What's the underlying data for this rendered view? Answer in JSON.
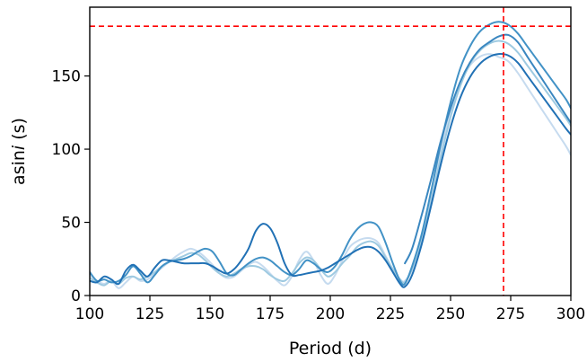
{
  "chart_data": {
    "type": "line",
    "xlabel": "Period (d)",
    "ylabel_prefix": "asin",
    "ylabel_italic": "i",
    "ylabel_suffix": " (s)",
    "xlim": [
      100,
      300
    ],
    "ylim": [
      0,
      197
    ],
    "xticks": [
      100,
      125,
      150,
      175,
      200,
      225,
      250,
      275,
      300
    ],
    "yticks": [
      0,
      50,
      100,
      150
    ],
    "grid": false,
    "reference_lines": {
      "x": 272,
      "y": 184,
      "color": "#ff0000",
      "style": "dashed"
    },
    "series": [
      {
        "color": "#c6dbef",
        "points": [
          [
            100,
            14
          ],
          [
            103,
            10
          ],
          [
            106,
            8
          ],
          [
            109,
            10
          ],
          [
            112,
            5
          ],
          [
            115,
            9
          ],
          [
            118,
            13
          ],
          [
            121,
            10
          ],
          [
            124,
            11
          ],
          [
            127,
            15
          ],
          [
            130,
            19
          ],
          [
            133,
            23
          ],
          [
            136,
            27
          ],
          [
            139,
            30
          ],
          [
            142,
            32
          ],
          [
            145,
            30
          ],
          [
            148,
            26
          ],
          [
            151,
            21
          ],
          [
            154,
            15
          ],
          [
            157,
            12
          ],
          [
            160,
            13
          ],
          [
            163,
            17
          ],
          [
            166,
            21
          ],
          [
            169,
            23
          ],
          [
            172,
            20
          ],
          [
            175,
            15
          ],
          [
            178,
            10
          ],
          [
            181,
            7
          ],
          [
            184,
            13
          ],
          [
            187,
            24
          ],
          [
            190,
            30
          ],
          [
            193,
            24
          ],
          [
            196,
            14
          ],
          [
            199,
            8
          ],
          [
            202,
            14
          ],
          [
            205,
            24
          ],
          [
            208,
            33
          ],
          [
            211,
            37
          ],
          [
            214,
            39
          ],
          [
            217,
            39
          ],
          [
            220,
            36
          ],
          [
            223,
            27
          ],
          [
            226,
            18
          ],
          [
            229,
            11
          ],
          [
            231,
            10
          ],
          [
            234,
            18
          ],
          [
            238,
            40
          ],
          [
            242,
            70
          ],
          [
            246,
            100
          ],
          [
            250,
            126
          ],
          [
            254,
            145
          ],
          [
            258,
            157
          ],
          [
            262,
            163
          ],
          [
            266,
            165
          ],
          [
            270,
            163
          ],
          [
            274,
            160
          ],
          [
            278,
            152
          ],
          [
            282,
            142
          ],
          [
            286,
            132
          ],
          [
            290,
            122
          ],
          [
            294,
            112
          ],
          [
            298,
            102
          ],
          [
            300,
            96
          ]
        ]
      },
      {
        "color": "#9ecae1",
        "points": [
          [
            100,
            12
          ],
          [
            103,
            9
          ],
          [
            106,
            7
          ],
          [
            109,
            10
          ],
          [
            112,
            8
          ],
          [
            115,
            12
          ],
          [
            118,
            13
          ],
          [
            121,
            11
          ],
          [
            124,
            13
          ],
          [
            127,
            16
          ],
          [
            130,
            20
          ],
          [
            133,
            23
          ],
          [
            136,
            25
          ],
          [
            139,
            27
          ],
          [
            142,
            29
          ],
          [
            145,
            28
          ],
          [
            148,
            24
          ],
          [
            151,
            19
          ],
          [
            154,
            15
          ],
          [
            157,
            13
          ],
          [
            160,
            15
          ],
          [
            163,
            18
          ],
          [
            166,
            20
          ],
          [
            169,
            20
          ],
          [
            172,
            18
          ],
          [
            175,
            14
          ],
          [
            178,
            11
          ],
          [
            181,
            10
          ],
          [
            184,
            15
          ],
          [
            187,
            22
          ],
          [
            190,
            26
          ],
          [
            193,
            24
          ],
          [
            196,
            18
          ],
          [
            199,
            13
          ],
          [
            202,
            16
          ],
          [
            205,
            22
          ],
          [
            208,
            27
          ],
          [
            211,
            33
          ],
          [
            214,
            36
          ],
          [
            217,
            37
          ],
          [
            220,
            34
          ],
          [
            223,
            26
          ],
          [
            226,
            18
          ],
          [
            229,
            11
          ],
          [
            231,
            9
          ],
          [
            234,
            18
          ],
          [
            238,
            38
          ],
          [
            242,
            65
          ],
          [
            246,
            95
          ],
          [
            250,
            122
          ],
          [
            254,
            143
          ],
          [
            258,
            158
          ],
          [
            262,
            167
          ],
          [
            266,
            172
          ],
          [
            270,
            174
          ],
          [
            274,
            172
          ],
          [
            278,
            166
          ],
          [
            282,
            157
          ],
          [
            286,
            148
          ],
          [
            290,
            139
          ],
          [
            294,
            130
          ],
          [
            298,
            121
          ],
          [
            300,
            116
          ]
        ]
      },
      {
        "color": "#4292c6",
        "points": [
          [
            100,
            16
          ],
          [
            103,
            10
          ],
          [
            106,
            11
          ],
          [
            109,
            9
          ],
          [
            112,
            10
          ],
          [
            115,
            14
          ],
          [
            118,
            20
          ],
          [
            121,
            15
          ],
          [
            124,
            9
          ],
          [
            127,
            14
          ],
          [
            130,
            20
          ],
          [
            133,
            23
          ],
          [
            136,
            24
          ],
          [
            139,
            25
          ],
          [
            142,
            27
          ],
          [
            145,
            30
          ],
          [
            148,
            32
          ],
          [
            151,
            30
          ],
          [
            154,
            23
          ],
          [
            157,
            15
          ],
          [
            160,
            14
          ],
          [
            163,
            18
          ],
          [
            166,
            22
          ],
          [
            169,
            25
          ],
          [
            172,
            26
          ],
          [
            175,
            24
          ],
          [
            178,
            20
          ],
          [
            181,
            16
          ],
          [
            184,
            14
          ],
          [
            187,
            18
          ],
          [
            190,
            24
          ],
          [
            193,
            22
          ],
          [
            196,
            18
          ],
          [
            199,
            16
          ],
          [
            202,
            20
          ],
          [
            205,
            28
          ],
          [
            208,
            38
          ],
          [
            211,
            45
          ],
          [
            214,
            49
          ],
          [
            217,
            50
          ],
          [
            220,
            47
          ],
          [
            223,
            36
          ],
          [
            226,
            22
          ],
          [
            229,
            10
          ],
          [
            231,
            8
          ],
          [
            234,
            20
          ],
          [
            238,
            42
          ],
          [
            242,
            72
          ],
          [
            246,
            104
          ],
          [
            250,
            132
          ],
          [
            254,
            155
          ],
          [
            258,
            170
          ],
          [
            262,
            180
          ],
          [
            266,
            185
          ],
          [
            270,
            187
          ],
          [
            274,
            185
          ],
          [
            278,
            179
          ],
          [
            282,
            170
          ],
          [
            286,
            161
          ],
          [
            290,
            152
          ],
          [
            294,
            143
          ],
          [
            298,
            134
          ],
          [
            300,
            128
          ]
        ]
      },
      {
        "color": "#2171b5",
        "points": [
          [
            100,
            10
          ],
          [
            103,
            9
          ],
          [
            106,
            13
          ],
          [
            109,
            11
          ],
          [
            112,
            8
          ],
          [
            115,
            17
          ],
          [
            118,
            21
          ],
          [
            121,
            17
          ],
          [
            124,
            13
          ],
          [
            127,
            19
          ],
          [
            130,
            24
          ],
          [
            133,
            24
          ],
          [
            136,
            23
          ],
          [
            139,
            22
          ],
          [
            142,
            22
          ],
          [
            145,
            22
          ],
          [
            148,
            22
          ],
          [
            151,
            20
          ],
          [
            154,
            17
          ],
          [
            157,
            15
          ],
          [
            160,
            18
          ],
          [
            163,
            24
          ],
          [
            166,
            32
          ],
          [
            169,
            44
          ],
          [
            172,
            49
          ],
          [
            175,
            46
          ],
          [
            178,
            36
          ],
          [
            181,
            22
          ],
          [
            184,
            14
          ],
          [
            187,
            14
          ],
          [
            190,
            15
          ],
          [
            193,
            16
          ],
          [
            196,
            17
          ],
          [
            199,
            19
          ],
          [
            202,
            22
          ],
          [
            205,
            25
          ],
          [
            208,
            28
          ],
          [
            211,
            31
          ],
          [
            214,
            33
          ],
          [
            217,
            33
          ],
          [
            220,
            30
          ],
          [
            223,
            24
          ],
          [
            226,
            16
          ],
          [
            229,
            8
          ],
          [
            231,
            6
          ],
          [
            234,
            14
          ],
          [
            238,
            35
          ],
          [
            242,
            62
          ],
          [
            246,
            90
          ],
          [
            250,
            115
          ],
          [
            254,
            135
          ],
          [
            258,
            149
          ],
          [
            262,
            158
          ],
          [
            266,
            163
          ],
          [
            270,
            165
          ],
          [
            274,
            164
          ],
          [
            278,
            159
          ],
          [
            282,
            150
          ],
          [
            286,
            141
          ],
          [
            290,
            132
          ],
          [
            294,
            123
          ],
          [
            298,
            114
          ],
          [
            300,
            110
          ]
        ]
      },
      {
        "color": "#3a87c0",
        "points": [
          [
            231,
            22
          ],
          [
            234,
            32
          ],
          [
            238,
            55
          ],
          [
            242,
            80
          ],
          [
            246,
            106
          ],
          [
            250,
            128
          ],
          [
            254,
            146
          ],
          [
            258,
            159
          ],
          [
            262,
            168
          ],
          [
            266,
            173
          ],
          [
            270,
            177
          ],
          [
            274,
            178
          ],
          [
            278,
            173
          ],
          [
            282,
            163
          ],
          [
            286,
            153
          ],
          [
            290,
            143
          ],
          [
            294,
            133
          ],
          [
            298,
            123
          ],
          [
            300,
            118
          ]
        ]
      }
    ]
  }
}
